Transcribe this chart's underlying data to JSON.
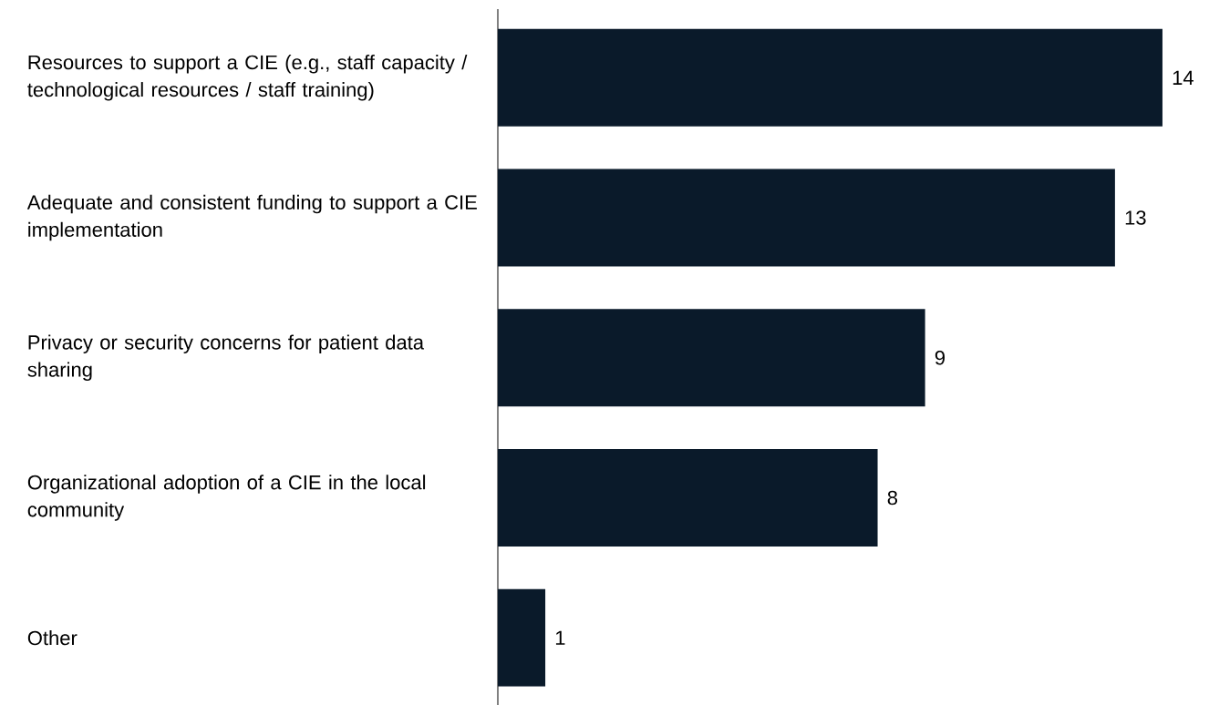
{
  "chart_data": {
    "type": "bar",
    "orientation": "horizontal",
    "categories": [
      "Resources to support a CIE (e.g., staff capacity / technological resources / staff training)",
      "Adequate and consistent funding to support a CIE implementation",
      "Privacy or security concerns for patient data sharing",
      "Organizational adoption of a CIE in the local community",
      "Other"
    ],
    "values": [
      14,
      13,
      9,
      8,
      1
    ],
    "color": "#0a1a2a",
    "data_labels": true
  }
}
